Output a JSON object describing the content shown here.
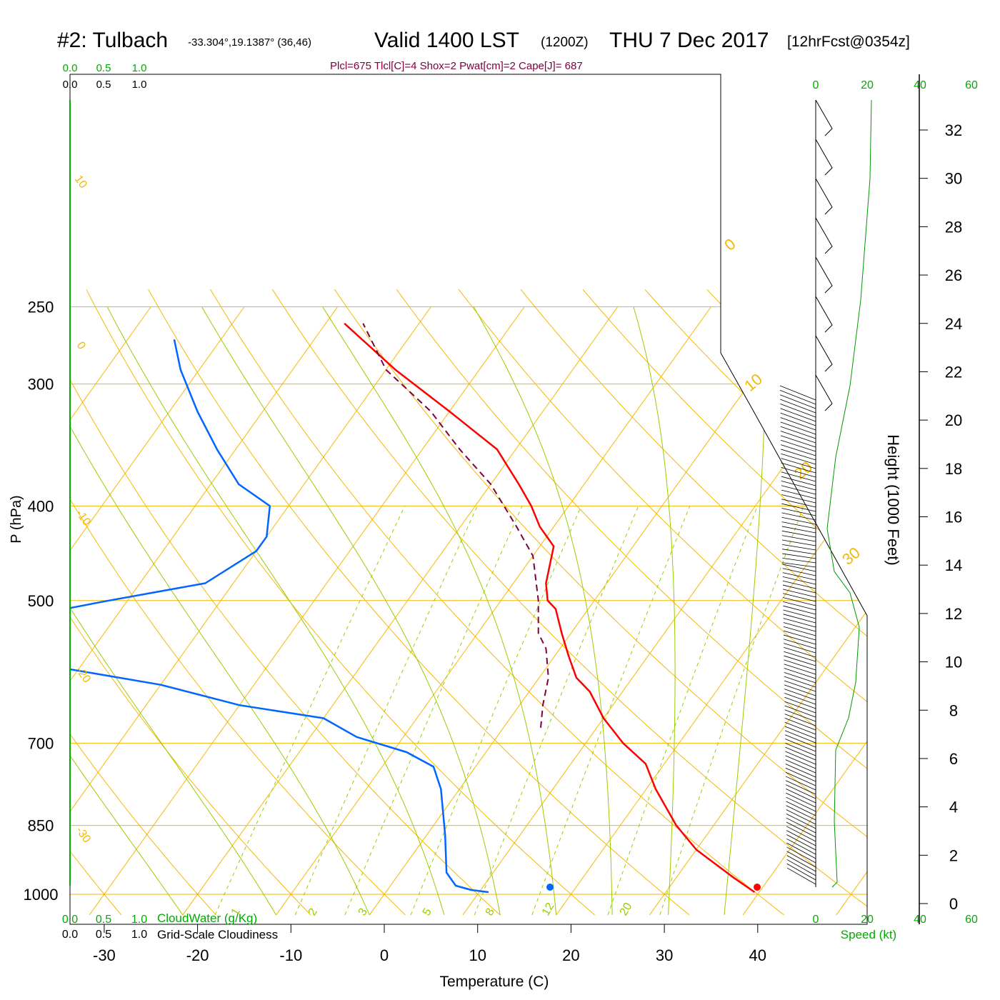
{
  "header": {
    "title_main": "#2: Tulbach",
    "title_coords": "-33.304°,19.1387° (36,46)",
    "valid_main": "Valid 1400 LST",
    "valid_utc": "(1200Z)",
    "valid_date": "THU 7 Dec 2017",
    "forecast": "[12hrFcst@0354z]",
    "params": "Plcl=675 Tlcl[C]=4 Shox=2 Pwat[cm]=2 Cape[J]= 687"
  },
  "colors": {
    "isotherm": "#f5b800",
    "dry_adiabat": "#f5b800",
    "moist_adiabat": "#99cc00",
    "mixing_ratio": "#99cc00",
    "temperature": "#ff0000",
    "dewpoint": "#0066ff",
    "parcel": "#800040",
    "green_label": "#00aa00",
    "speed_profile": "#009900",
    "params_text": "#800040"
  },
  "cloud_scales": {
    "top_green": [
      "0.0",
      "0.5",
      "1.0"
    ],
    "top_black": [
      "0.0",
      "0.5",
      "1.0"
    ],
    "bottom_green": [
      "0.0",
      "0.5",
      "1.0"
    ],
    "bottom_black": [
      "0.0",
      "0.5",
      "1.0"
    ],
    "cloudwater_label": "CloudWater (g/Kg)",
    "cloudiness_label": "Grid-Scale Cloudiness"
  },
  "wind_panel": {
    "top_ticks": [
      "0",
      "20",
      "40",
      "60"
    ],
    "bottom_ticks": [
      "0",
      "20",
      "40",
      "60"
    ],
    "speed_label": "Speed (kt)"
  },
  "height_axis": {
    "label": "Height (1000 Feet)",
    "ticks": [
      "0",
      "2",
      "4",
      "6",
      "8",
      "10",
      "12",
      "14",
      "16",
      "18",
      "20",
      "22",
      "24",
      "26",
      "28",
      "30",
      "32"
    ]
  },
  "chart_data": {
    "type": "line",
    "title": "#2: Tulbach",
    "xlabel": "Temperature (C)",
    "ylabel": "P (hPa)",
    "ylabel2": "Height (1000 Feet)",
    "x_ticks": [
      -30,
      -20,
      -10,
      0,
      10,
      20,
      30,
      40
    ],
    "y_ticks": [
      250,
      300,
      400,
      500,
      700,
      850,
      1000
    ],
    "y_scale": "log",
    "ylim": [
      250,
      1050
    ],
    "xlim": [
      -34,
      36
    ],
    "isotherm_labels": [
      "10",
      "0",
      "-10",
      "-20",
      "-30"
    ],
    "dry_adiabat_labels": [
      "0",
      "10",
      "20",
      "30"
    ],
    "mixing_ratio_labels": [
      "1",
      "2",
      "3",
      "5",
      "8",
      "12",
      "20"
    ],
    "series": [
      {
        "name": "Temperature",
        "points": [
          [
            39.5,
            995
          ],
          [
            36.0,
            960
          ],
          [
            30.0,
            900
          ],
          [
            26.0,
            850
          ],
          [
            21.0,
            780
          ],
          [
            18.0,
            735
          ],
          [
            14.0,
            700
          ],
          [
            10.0,
            660
          ],
          [
            6.5,
            620
          ],
          [
            4.0,
            600
          ],
          [
            1.5,
            570
          ],
          [
            -1.0,
            540
          ],
          [
            -3.5,
            510
          ],
          [
            -5.0,
            500
          ],
          [
            -6.5,
            480
          ],
          [
            -8.5,
            440
          ],
          [
            -11.5,
            420
          ],
          [
            -14.0,
            400
          ],
          [
            -17.0,
            380
          ],
          [
            -22.0,
            350
          ],
          [
            -30.0,
            320
          ],
          [
            -39.0,
            290
          ],
          [
            -48.0,
            260
          ]
        ]
      },
      {
        "name": "Dewpoint",
        "points": [
          [
            11.0,
            995
          ],
          [
            9.0,
            990
          ],
          [
            7.0,
            980
          ],
          [
            5.0,
            950
          ],
          [
            2.0,
            870
          ],
          [
            -2.0,
            780
          ],
          [
            -4.5,
            740
          ],
          [
            -8.5,
            715
          ],
          [
            -15.0,
            690
          ],
          [
            -20.0,
            660
          ],
          [
            -30.0,
            640
          ],
          [
            -40.0,
            610
          ],
          [
            -55.0,
            580
          ],
          [
            -60.0,
            570
          ],
          [
            -63.0,
            550
          ],
          [
            -60.0,
            520
          ],
          [
            -52.0,
            500
          ],
          [
            -43.0,
            480
          ],
          [
            -40.0,
            445
          ],
          [
            -40.0,
            430
          ],
          [
            -42.0,
            400
          ],
          [
            -47.0,
            380
          ],
          [
            -52.0,
            350
          ],
          [
            -57.0,
            320
          ],
          [
            -62.0,
            290
          ],
          [
            -65.0,
            270
          ]
        ]
      },
      {
        "name": "Parcel",
        "points": [
          [
            4.0,
            675
          ],
          [
            2.5,
            640
          ],
          [
            1.0,
            600
          ],
          [
            -1.5,
            560
          ],
          [
            -3.5,
            540
          ],
          [
            -6.0,
            500
          ],
          [
            -10.0,
            450
          ],
          [
            -14.0,
            420
          ],
          [
            -20.0,
            380
          ],
          [
            -26.0,
            350
          ],
          [
            -32.0,
            320
          ],
          [
            -40.0,
            290
          ],
          [
            -46.0,
            260
          ]
        ]
      }
    ],
    "surface_temperature": 40,
    "surface_dewpoint": 18
  }
}
